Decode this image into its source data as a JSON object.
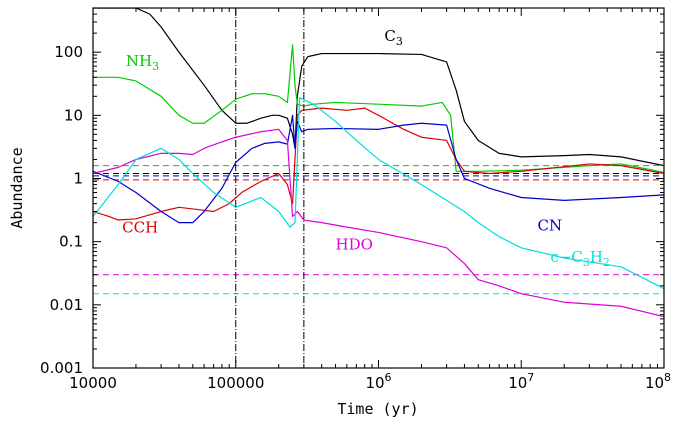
{
  "chart_data": {
    "type": "line",
    "title": "",
    "xlabel": "Time (yr)",
    "ylabel": "Abundance",
    "xscale": "log",
    "yscale": "log",
    "xlim": [
      10000,
      100000000
    ],
    "ylim": [
      0.001,
      500
    ],
    "grid": false,
    "legend": "inline labels",
    "x_tick_labels": [
      {
        "value": 10000,
        "base": "10000",
        "exp": ""
      },
      {
        "value": 100000,
        "base": "100000",
        "exp": ""
      },
      {
        "value": 1000000,
        "base": "10",
        "exp": "6"
      },
      {
        "value": 10000000,
        "base": "10",
        "exp": "7"
      },
      {
        "value": 100000000,
        "base": "10",
        "exp": "8"
      }
    ],
    "y_tick_labels": [
      {
        "value": 0.001,
        "text": "0.001"
      },
      {
        "value": 0.01,
        "text": "0.01"
      },
      {
        "value": 0.1,
        "text": "0.1"
      },
      {
        "value": 1,
        "text": "1"
      },
      {
        "value": 10,
        "text": "10"
      },
      {
        "value": 100,
        "text": "100"
      }
    ],
    "vertical_lines": [
      100000,
      300000
    ],
    "series": [
      {
        "name": "C3",
        "label_main": "C",
        "label_sub": "3",
        "color": "#000000",
        "points": [
          [
            10000,
            500
          ],
          [
            20000,
            500
          ],
          [
            25000,
            400
          ],
          [
            30000,
            250
          ],
          [
            40000,
            100
          ],
          [
            60000,
            30
          ],
          [
            80000,
            12
          ],
          [
            100000,
            7.5
          ],
          [
            120000,
            7.5
          ],
          [
            150000,
            9
          ],
          [
            180000,
            10
          ],
          [
            200000,
            10
          ],
          [
            230000,
            9
          ],
          [
            250000,
            5
          ],
          [
            260000,
            3
          ],
          [
            270000,
            20
          ],
          [
            290000,
            60
          ],
          [
            320000,
            85
          ],
          [
            400000,
            95
          ],
          [
            600000,
            95
          ],
          [
            1000000,
            95
          ],
          [
            2000000,
            92
          ],
          [
            3000000,
            70
          ],
          [
            3500000,
            25
          ],
          [
            4000000,
            8
          ],
          [
            5000000,
            4
          ],
          [
            7000000,
            2.5
          ],
          [
            10000000,
            2.2
          ],
          [
            20000000,
            2.3
          ],
          [
            30000000,
            2.4
          ],
          [
            50000000,
            2.2
          ],
          [
            100000000,
            1.6
          ]
        ]
      },
      {
        "name": "NH3",
        "label_main": "NH",
        "label_sub": "3",
        "color": "#00cc00",
        "points": [
          [
            10000,
            40
          ],
          [
            15000,
            40
          ],
          [
            20000,
            35
          ],
          [
            30000,
            20
          ],
          [
            40000,
            10
          ],
          [
            50000,
            7.5
          ],
          [
            60000,
            7.5
          ],
          [
            80000,
            12
          ],
          [
            100000,
            18
          ],
          [
            130000,
            22
          ],
          [
            160000,
            22
          ],
          [
            200000,
            20
          ],
          [
            230000,
            16
          ],
          [
            250000,
            130
          ],
          [
            260000,
            30
          ],
          [
            270000,
            15
          ],
          [
            300000,
            14
          ],
          [
            350000,
            15
          ],
          [
            500000,
            16
          ],
          [
            1000000,
            15
          ],
          [
            2000000,
            14
          ],
          [
            2800000,
            16
          ],
          [
            3200000,
            10
          ],
          [
            3500000,
            1.3
          ],
          [
            5000000,
            1.3
          ],
          [
            10000000,
            1.35
          ],
          [
            30000000,
            1.6
          ],
          [
            50000000,
            1.7
          ],
          [
            100000000,
            1.25
          ]
        ]
      },
      {
        "name": "CCH",
        "label_main": "CCH",
        "label_sub": "",
        "color": "#dd0000",
        "points": [
          [
            10000,
            0.3
          ],
          [
            13000,
            0.25
          ],
          [
            15000,
            0.22
          ],
          [
            20000,
            0.23
          ],
          [
            30000,
            0.3
          ],
          [
            40000,
            0.35
          ],
          [
            50000,
            0.33
          ],
          [
            70000,
            0.3
          ],
          [
            90000,
            0.4
          ],
          [
            110000,
            0.6
          ],
          [
            150000,
            0.9
          ],
          [
            200000,
            1.2
          ],
          [
            230000,
            0.8
          ],
          [
            250000,
            0.4
          ],
          [
            270000,
            10
          ],
          [
            290000,
            12
          ],
          [
            400000,
            13
          ],
          [
            600000,
            12
          ],
          [
            800000,
            13
          ],
          [
            1000000,
            10
          ],
          [
            1500000,
            6
          ],
          [
            2000000,
            4.5
          ],
          [
            3000000,
            4
          ],
          [
            3500000,
            2
          ],
          [
            4000000,
            1.3
          ],
          [
            6000000,
            1.2
          ],
          [
            10000000,
            1.3
          ],
          [
            30000000,
            1.7
          ],
          [
            50000000,
            1.6
          ],
          [
            100000000,
            1.2
          ]
        ]
      },
      {
        "name": "CN",
        "label_main": "CN",
        "label_sub": "",
        "color": "#0000cc",
        "points": [
          [
            10000,
            1.3
          ],
          [
            15000,
            0.9
          ],
          [
            20000,
            0.6
          ],
          [
            30000,
            0.3
          ],
          [
            40000,
            0.2
          ],
          [
            50000,
            0.2
          ],
          [
            60000,
            0.3
          ],
          [
            80000,
            0.7
          ],
          [
            100000,
            1.8
          ],
          [
            130000,
            3
          ],
          [
            160000,
            3.6
          ],
          [
            200000,
            3.8
          ],
          [
            230000,
            3.5
          ],
          [
            250000,
            10
          ],
          [
            260000,
            3
          ],
          [
            270000,
            8
          ],
          [
            290000,
            5.5
          ],
          [
            320000,
            6
          ],
          [
            500000,
            6.2
          ],
          [
            1000000,
            6
          ],
          [
            1500000,
            7
          ],
          [
            2000000,
            7.5
          ],
          [
            3000000,
            7
          ],
          [
            3500000,
            2
          ],
          [
            4000000,
            1
          ],
          [
            6000000,
            0.7
          ],
          [
            10000000,
            0.5
          ],
          [
            20000000,
            0.45
          ],
          [
            50000000,
            0.5
          ],
          [
            100000000,
            0.55
          ]
        ]
      },
      {
        "name": "HDO",
        "label_main": "HDO",
        "label_sub": "",
        "color": "#dd00dd",
        "points": [
          [
            10000,
            1.2
          ],
          [
            15000,
            1.5
          ],
          [
            20000,
            2
          ],
          [
            30000,
            2.5
          ],
          [
            40000,
            2.5
          ],
          [
            50000,
            2.4
          ],
          [
            60000,
            3
          ],
          [
            80000,
            3.8
          ],
          [
            100000,
            4.5
          ],
          [
            150000,
            5.5
          ],
          [
            200000,
            6
          ],
          [
            230000,
            4
          ],
          [
            250000,
            0.25
          ],
          [
            270000,
            0.3
          ],
          [
            300000,
            0.22
          ],
          [
            400000,
            0.2
          ],
          [
            600000,
            0.17
          ],
          [
            1000000,
            0.14
          ],
          [
            2000000,
            0.1
          ],
          [
            3000000,
            0.08
          ],
          [
            4000000,
            0.045
          ],
          [
            5000000,
            0.025
          ],
          [
            7000000,
            0.02
          ],
          [
            10000000,
            0.015
          ],
          [
            20000000,
            0.011
          ],
          [
            50000000,
            0.0095
          ],
          [
            100000000,
            0.0065
          ]
        ]
      },
      {
        "name": "c-C3H2",
        "label_main": "c−C",
        "label_sub": "3",
        "label_main2": "H",
        "label_sub2": "2",
        "color": "#00dddd",
        "points": [
          [
            10000,
            0.25
          ],
          [
            15000,
            0.8
          ],
          [
            20000,
            2
          ],
          [
            30000,
            3
          ],
          [
            40000,
            2
          ],
          [
            50000,
            1.2
          ],
          [
            70000,
            0.6
          ],
          [
            100000,
            0.35
          ],
          [
            150000,
            0.5
          ],
          [
            200000,
            0.3
          ],
          [
            240000,
            0.17
          ],
          [
            260000,
            0.2
          ],
          [
            280000,
            19
          ],
          [
            350000,
            15
          ],
          [
            500000,
            8
          ],
          [
            700000,
            4
          ],
          [
            1000000,
            2
          ],
          [
            2000000,
            0.8
          ],
          [
            3000000,
            0.45
          ],
          [
            4000000,
            0.3
          ],
          [
            5000000,
            0.2
          ],
          [
            7000000,
            0.12
          ],
          [
            10000000,
            0.08
          ],
          [
            20000000,
            0.055
          ],
          [
            50000000,
            0.04
          ],
          [
            100000000,
            0.018
          ]
        ]
      }
    ],
    "reference_lines": [
      {
        "name": "NH3 ref",
        "y": 1.6,
        "color": "#00cc00"
      },
      {
        "name": "C3 ref",
        "y": 1.2,
        "color": "#000000"
      },
      {
        "name": "CN ref",
        "y": 1.1,
        "color": "#0000cc"
      },
      {
        "name": "CCH ref",
        "y": 0.95,
        "color": "#dd0000"
      },
      {
        "name": "HDO ref",
        "y": 0.03,
        "color": "#dd00dd"
      },
      {
        "name": "c-C3H2 ref",
        "y": 0.015,
        "color": "#00dddd"
      }
    ],
    "labels_at": [
      {
        "series": "C3",
        "x": 1100000,
        "y": 150
      },
      {
        "series": "NH3",
        "x": 17000,
        "y": 60
      },
      {
        "series": "CCH",
        "x": 16000,
        "y": 0.14
      },
      {
        "series": "CN",
        "x": 13000000,
        "y": 0.15
      },
      {
        "series": "HDO",
        "x": 500000,
        "y": 0.075
      },
      {
        "series": "c-C3H2",
        "x": 16000000,
        "y": 0.048
      }
    ]
  }
}
